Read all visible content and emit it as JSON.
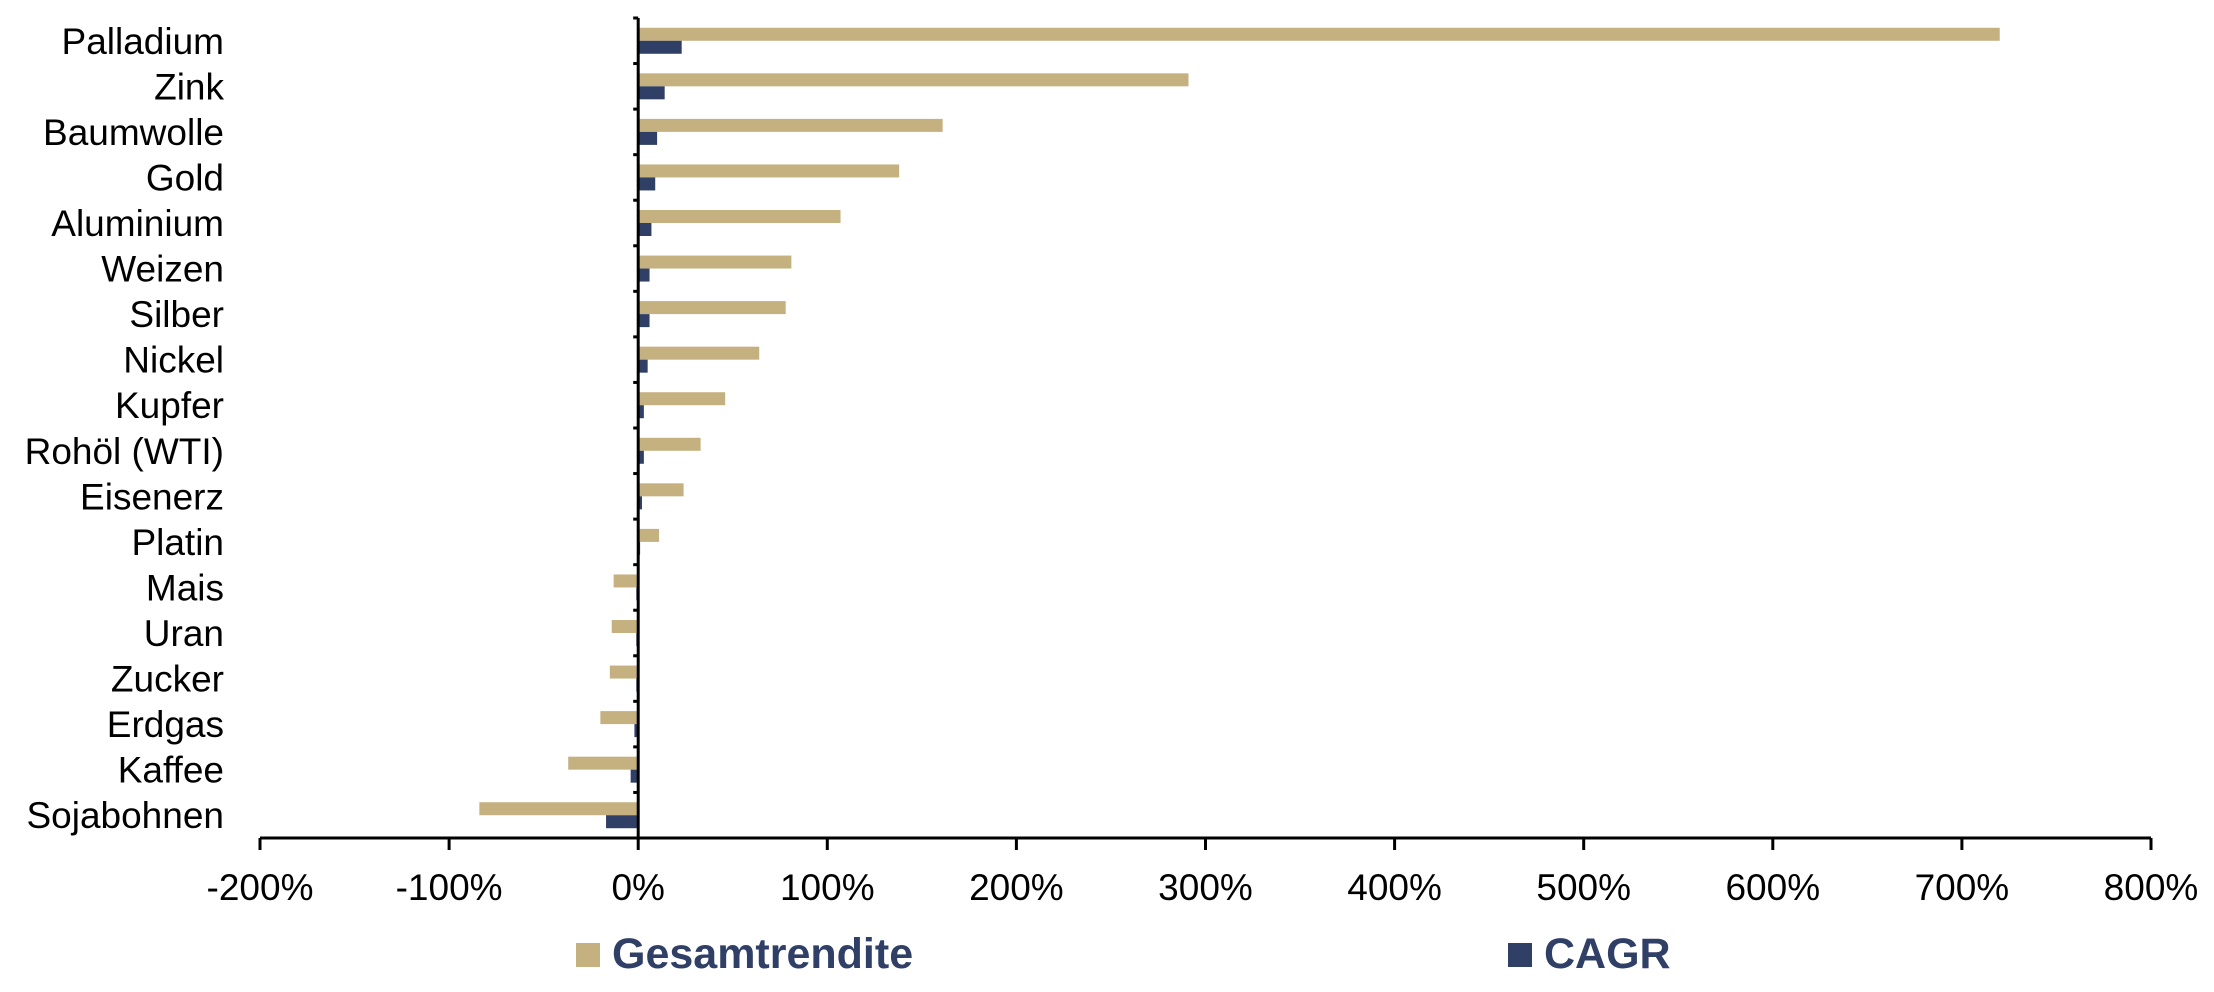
{
  "chart_data": {
    "type": "bar",
    "orientation": "horizontal",
    "categories": [
      "Palladium",
      "Zink",
      "Baumwolle",
      "Gold",
      "Aluminium",
      "Weizen",
      "Silber",
      "Nickel",
      "Kupfer",
      "Rohöl (WTI)",
      "Eisenerz",
      "Platin",
      "Mais",
      "Uran",
      "Zucker",
      "Erdgas",
      "Kaffee",
      "Sojabohnen"
    ],
    "series": [
      {
        "name": "Gesamtrendite",
        "color": "#c5b07f",
        "values": [
          720,
          291,
          161,
          138,
          107,
          81,
          78,
          64,
          46,
          33,
          24,
          11,
          -13,
          -14,
          -15,
          -20,
          -37,
          -84
        ]
      },
      {
        "name": "CAGR",
        "color": "#2f3f66",
        "values": [
          23,
          14,
          10,
          9,
          7,
          6,
          6,
          5,
          3,
          3,
          2,
          1,
          -1,
          -1,
          -1,
          -2,
          -4,
          -17
        ]
      }
    ],
    "xlim": [
      -200,
      800
    ],
    "xticks": [
      -200,
      -100,
      0,
      100,
      200,
      300,
      400,
      500,
      600,
      700,
      800
    ],
    "xtick_labels": [
      "-200%",
      "-100%",
      "0%",
      "100%",
      "200%",
      "300%",
      "400%",
      "500%",
      "600%",
      "700%",
      "800%"
    ],
    "legend_position": "bottom",
    "grid": false
  }
}
